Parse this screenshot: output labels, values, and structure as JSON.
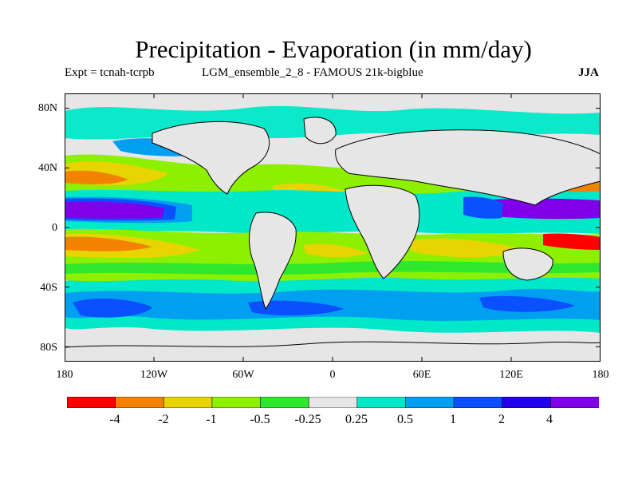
{
  "title": "Precipitation - Evaporation (in mm/day)",
  "subtitle": {
    "expt": "Expt = tcnah-tcrpb",
    "run": "LGM_ensemble_2_8 - FAMOUS 21k-bigblue",
    "season": "JJA"
  },
  "map": {
    "projection": "cylindrical equidistant",
    "lon_range": [
      -180,
      180
    ],
    "lat_range": [
      -90,
      90
    ],
    "y_ticks": [
      {
        "lat": 80,
        "label": "80N"
      },
      {
        "lat": 40,
        "label": "40N"
      },
      {
        "lat": 0,
        "label": "0"
      },
      {
        "lat": -40,
        "label": "40S"
      },
      {
        "lat": -80,
        "label": "80S"
      }
    ],
    "x_ticks": [
      {
        "lon": -180,
        "label": "180"
      },
      {
        "lon": -120,
        "label": "120W"
      },
      {
        "lon": -60,
        "label": "60W"
      },
      {
        "lon": 0,
        "label": "0"
      },
      {
        "lon": 60,
        "label": "60E"
      },
      {
        "lon": 120,
        "label": "120E"
      },
      {
        "lon": 180,
        "label": "180"
      }
    ]
  },
  "colorbar": {
    "colors": [
      "#ff0000",
      "#f28200",
      "#e8d400",
      "#8df000",
      "#2fe82d",
      "#e6e6e6",
      "#00e8c8",
      "#009ff0",
      "#0a50ff",
      "#2200ee",
      "#8000e8"
    ],
    "labels": [
      "-4",
      "-2",
      "-1",
      "-0.5",
      "-0.25",
      "0.25",
      "0.5",
      "1",
      "2",
      "4"
    ]
  }
}
